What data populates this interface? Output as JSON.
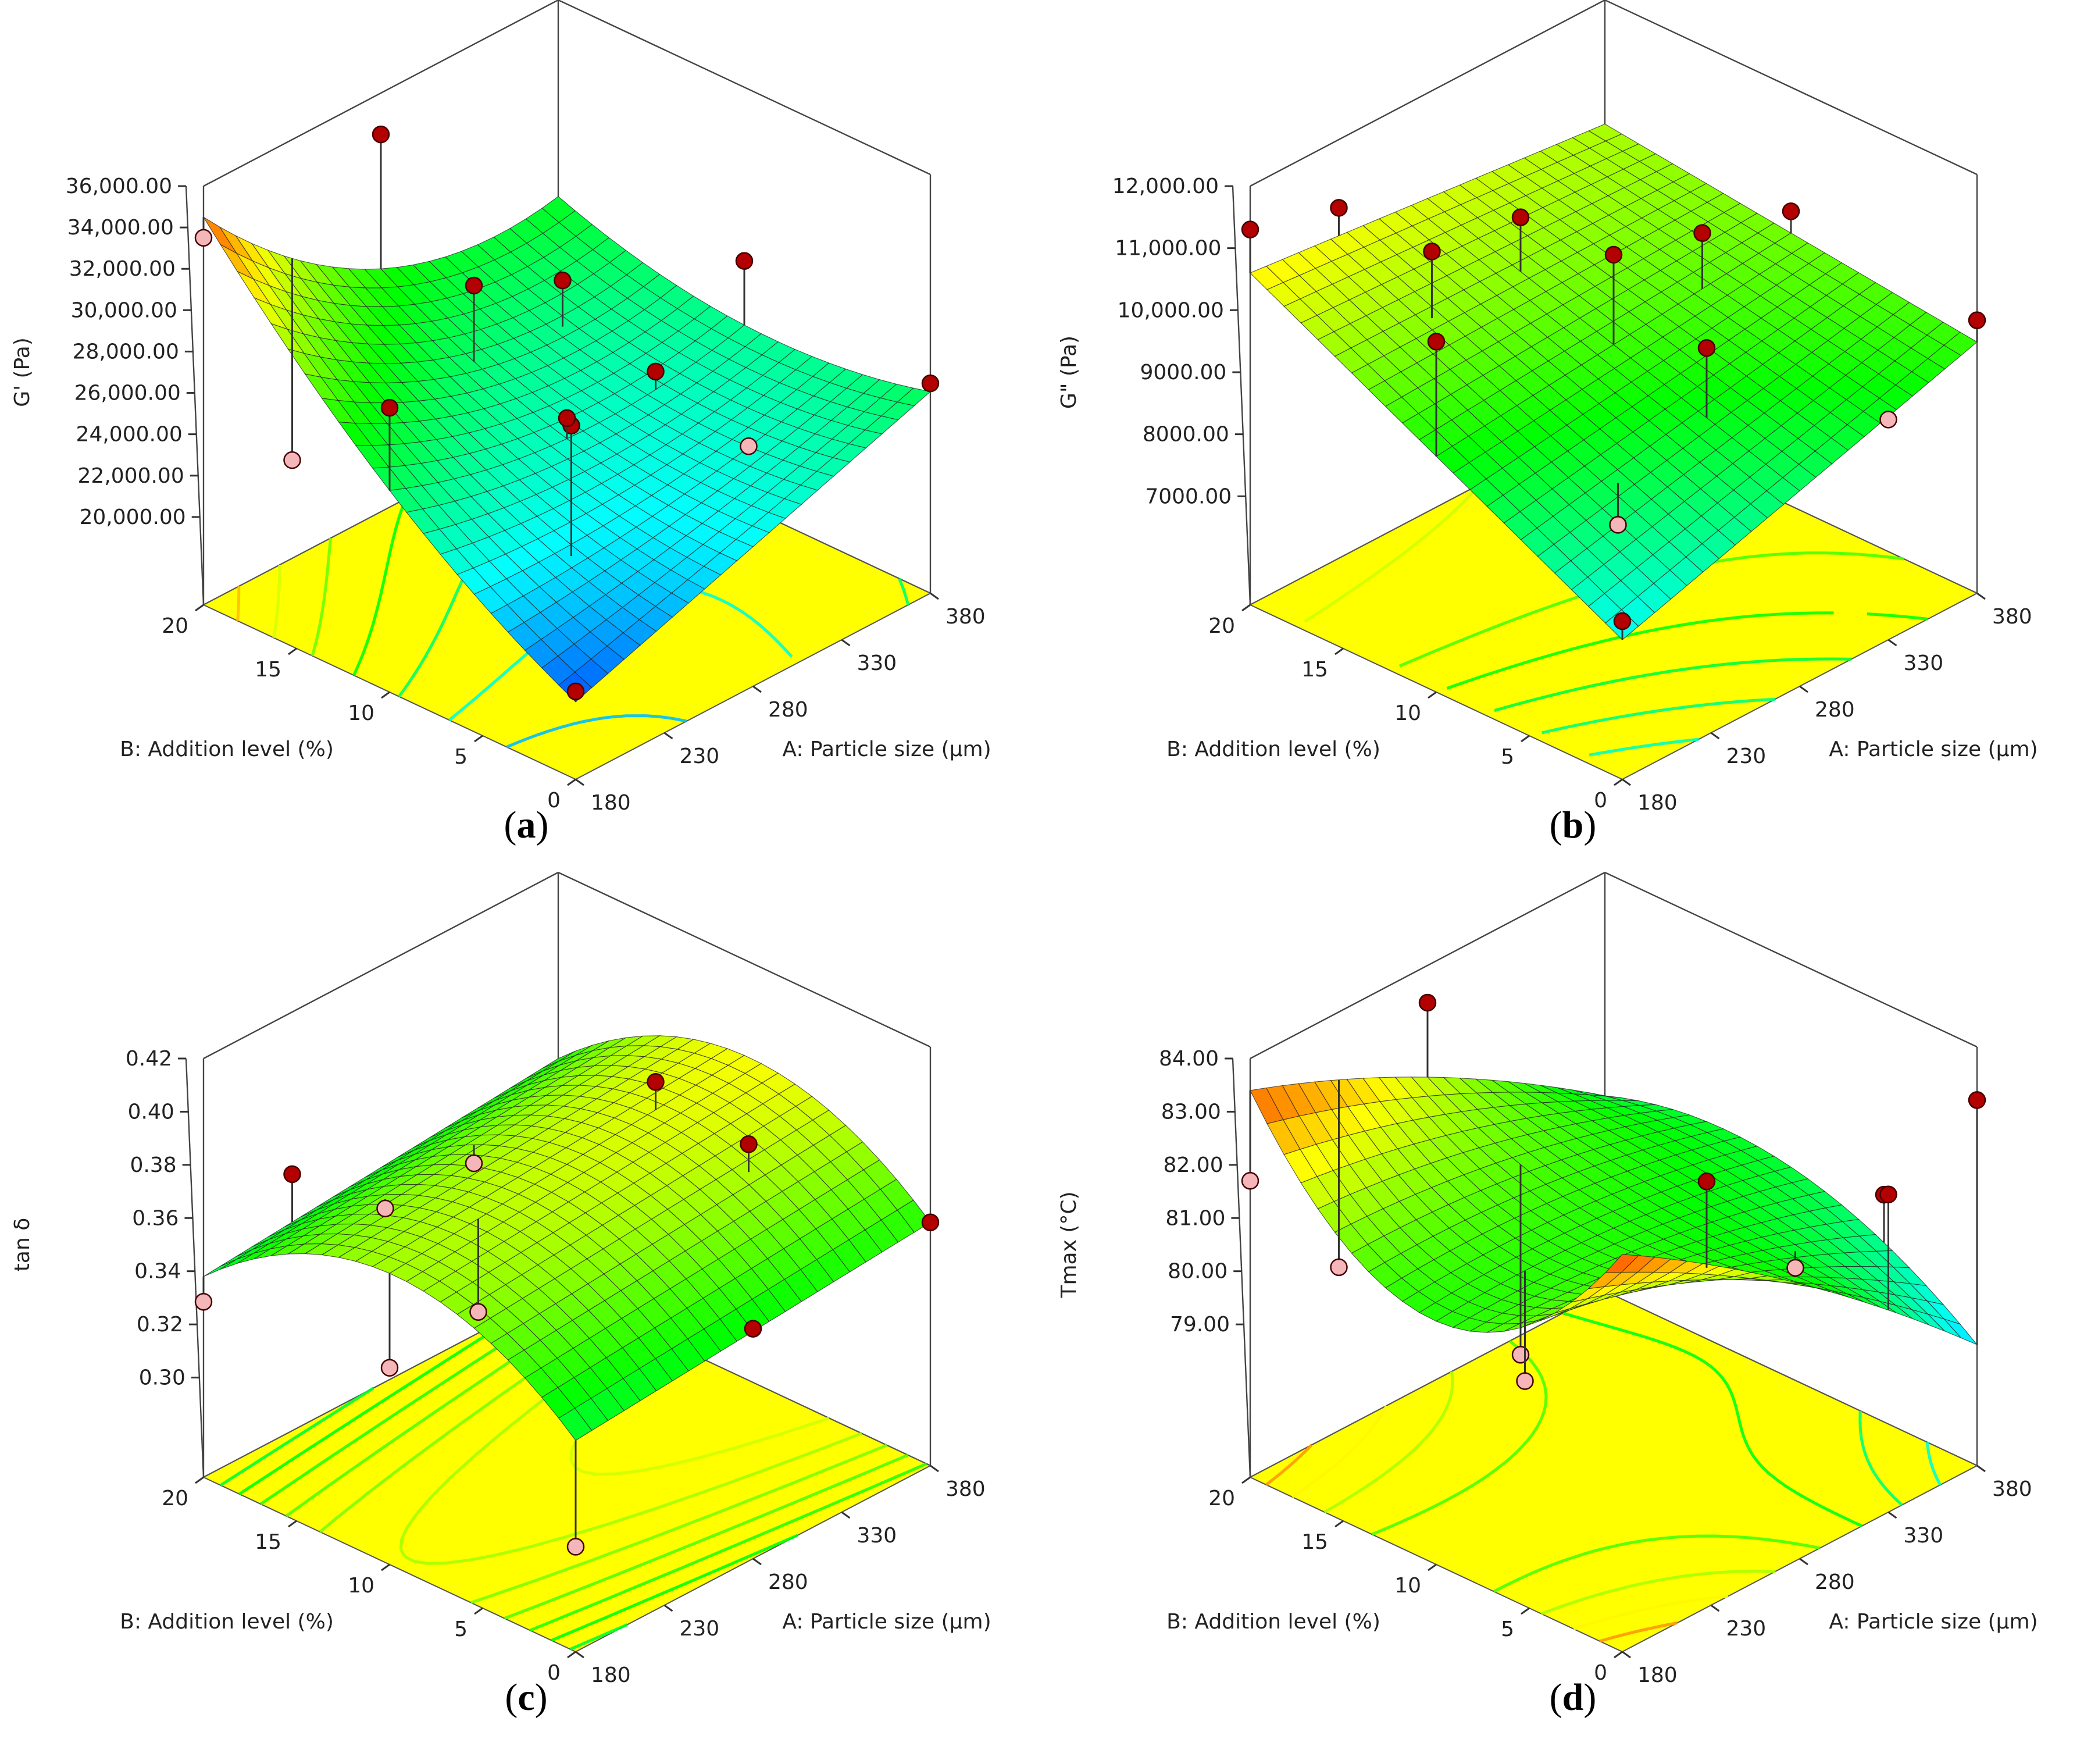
{
  "figure": {
    "colors": {
      "floor": "#ffff00",
      "point_above": "#b30000",
      "point_below": "#f4b6b8",
      "point_design": "#ffffff",
      "colormap": [
        "#0000ff",
        "#00ffff",
        "#00ff00",
        "#ffff00",
        "#ff0000"
      ]
    }
  },
  "chart_data": [
    {
      "type": "surface3d",
      "caption_label": "a",
      "zlabel": "G' (Pa)",
      "xlabel": "A: Particle size (μm)",
      "ylabel": "B: Addition level (%)",
      "x_ticks": [
        "180",
        "230",
        "280",
        "330",
        "380"
      ],
      "y_ticks": [
        "0",
        "5",
        "10",
        "15",
        "20"
      ],
      "z_ticks": [
        "20,000.00",
        "22,000.00",
        "24,000.00",
        "26,000.00",
        "28,000.00",
        "30,000.00",
        "32,000.00",
        "34,000.00",
        "36,000.00"
      ],
      "xlim": [
        180,
        380
      ],
      "ylim": [
        0,
        20
      ],
      "zlim": [
        18000,
        36000
      ],
      "model": {
        "b0": 23500,
        "bA": -500,
        "bB": 2500,
        "bAB": -3500,
        "bAA": 1500,
        "bBB": 1500,
        "bAAB": 1500,
        "bABB": 0,
        "bAAA": 0,
        "bBBB": 0
      },
      "points": [
        {
          "A": 180,
          "B": 20,
          "G": 33500
        },
        {
          "A": 280,
          "B": 20,
          "G": 34000
        },
        {
          "A": 180,
          "B": 10,
          "G": 29500
        },
        {
          "A": 280,
          "B": 15,
          "G": 28800
        },
        {
          "A": 230,
          "B": 5,
          "G": 28500
        },
        {
          "A": 330,
          "B": 15,
          "G": 26800
        },
        {
          "A": 380,
          "B": 10,
          "G": 27600
        },
        {
          "A": 180,
          "B": 0,
          "G": 20000
        },
        {
          "A": 230,
          "B": 20,
          "G": 20500
        },
        {
          "A": 330,
          "B": 5,
          "G": 23000
        },
        {
          "A": 380,
          "B": 0,
          "G": 25900
        },
        {
          "A": 280,
          "B": 10,
          "G": 24500
        },
        {
          "A": 330,
          "B": 10,
          "G": 24500
        }
      ]
    },
    {
      "type": "surface3d",
      "caption_label": "b",
      "zlabel": "G\" (Pa)",
      "xlabel": "A: Particle size (μm)",
      "ylabel": "B: Addition level (%)",
      "x_ticks": [
        "180",
        "230",
        "280",
        "330",
        "380"
      ],
      "y_ticks": [
        "0",
        "5",
        "10",
        "15",
        "20"
      ],
      "z_ticks": [
        "7000.00",
        "8000.00",
        "9000.00",
        "10,000.00",
        "11,000.00",
        "12,000.00"
      ],
      "xlim": [
        180,
        380
      ],
      "ylim": [
        0,
        20
      ],
      "zlim": [
        6000,
        12000
      ],
      "model": {
        "b0": 9350,
        "bA": 300,
        "bB": 950,
        "bAB": -600,
        "bAA": 0,
        "bBB": 0,
        "bAAB": 0,
        "bABB": 0,
        "bAAA": 0,
        "bBBB": 0
      },
      "points": [
        {
          "A": 180,
          "B": 20,
          "G": 11300
        },
        {
          "A": 230,
          "B": 20,
          "G": 10900
        },
        {
          "A": 180,
          "B": 10,
          "G": 10900
        },
        {
          "A": 230,
          "B": 15,
          "G": 10900
        },
        {
          "A": 280,
          "B": 15,
          "G": 10700
        },
        {
          "A": 280,
          "B": 10,
          "G": 10800
        },
        {
          "A": 330,
          "B": 10,
          "G": 10400
        },
        {
          "A": 380,
          "B": 10,
          "G": 10000
        },
        {
          "A": 380,
          "B": 0,
          "G": 9650
        },
        {
          "A": 330,
          "B": 0,
          "G": 8800
        },
        {
          "A": 230,
          "B": 5,
          "G": 7900
        },
        {
          "A": 180,
          "B": 0,
          "G": 7800
        },
        {
          "A": 280,
          "B": 5,
          "G": 10000
        }
      ]
    },
    {
      "type": "surface3d",
      "caption_label": "c",
      "zlabel": "tan δ",
      "xlabel": "A: Particle size (μm)",
      "ylabel": "B: Addition level (%)",
      "x_ticks": [
        "180",
        "230",
        "280",
        "330",
        "380"
      ],
      "y_ticks": [
        "0",
        "5",
        "10",
        "15",
        "20"
      ],
      "z_ticks": [
        "0.30",
        "0.32",
        "0.34",
        "0.36",
        "0.38",
        "0.40",
        "0.42"
      ],
      "xlim": [
        180,
        380
      ],
      "ylim": [
        0,
        20
      ],
      "zlim": [
        0.28,
        0.42
      ],
      "model": {
        "b0": 0.378,
        "bA": 0.006,
        "bB": -0.002,
        "bAB": 0,
        "bAA": 0,
        "bBB": -0.032,
        "bAAB": 0,
        "bABB": 0,
        "bAAA": 0,
        "bBBB": 0
      },
      "points": [
        {
          "A": 180,
          "B": 20,
          "G": 0.3285
        },
        {
          "A": 230,
          "B": 20,
          "G": 0.359
        },
        {
          "A": 230,
          "B": 15,
          "G": 0.3625
        },
        {
          "A": 280,
          "B": 15,
          "G": 0.362
        },
        {
          "A": 330,
          "B": 10,
          "G": 0.3915
        },
        {
          "A": 330,
          "B": 5,
          "G": 0.3845
        },
        {
          "A": 380,
          "B": 0,
          "G": 0.354
        },
        {
          "A": 280,
          "B": 0,
          "G": 0.349
        },
        {
          "A": 180,
          "B": 0,
          "G": 0.302
        },
        {
          "A": 180,
          "B": 10,
          "G": 0.3365
        },
        {
          "A": 230,
          "B": 10,
          "G": 0.34
        }
      ]
    },
    {
      "type": "surface3d",
      "caption_label": "d",
      "zlabel": "Tmax (°C)",
      "xlabel": "A: Particle size (μm)",
      "ylabel": "B: Addition level (%)",
      "x_ticks": [
        "180",
        "230",
        "280",
        "330",
        "380"
      ],
      "y_ticks": [
        "0",
        "5",
        "10",
        "15",
        "20"
      ],
      "z_ticks": [
        "79.00",
        "80.00",
        "81.00",
        "82.00",
        "83.00",
        "84.00"
      ],
      "xlim": [
        180,
        380
      ],
      "ylim": [
        0,
        20
      ],
      "zlim": [
        77,
        84
      ],
      "model": {
        "b0": 80.7,
        "bA": -0.3,
        "bB": 0.3,
        "bAB": 0.4,
        "bAA": -0.3,
        "bBB": 0.9,
        "bAAB": 0,
        "bABB": -1.9,
        "bAAA": 0,
        "bBBB": 0
      },
      "points": [
        {
          "A": 180,
          "B": 20,
          "G": 81.7
        },
        {
          "A": 230,
          "B": 20,
          "G": 79.2
        },
        {
          "A": 280,
          "B": 15,
          "G": 77.5
        },
        {
          "A": 280,
          "B": 20,
          "G": 83.3
        },
        {
          "A": 230,
          "B": 10,
          "G": 78.7
        },
        {
          "A": 280,
          "B": 5,
          "G": 82.4
        },
        {
          "A": 330,
          "B": 5,
          "G": 79.9
        },
        {
          "A": 380,
          "B": 5,
          "G": 80.4
        },
        {
          "A": 380,
          "B": 0,
          "G": 83.0
        },
        {
          "A": 330,
          "B": 0,
          "G": 82.1
        }
      ]
    }
  ]
}
